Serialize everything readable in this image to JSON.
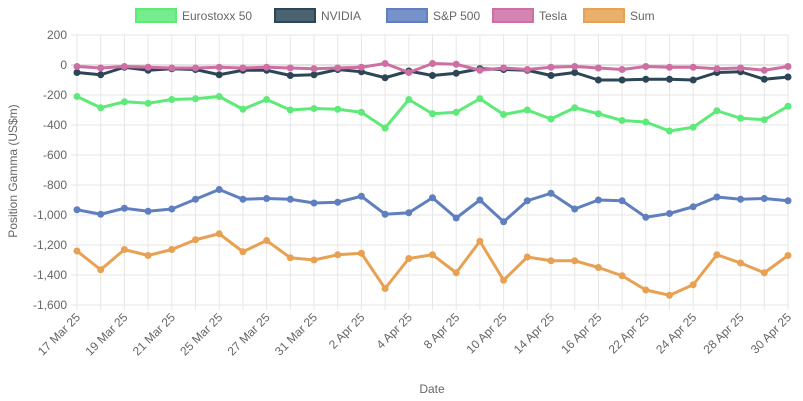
{
  "chart_data": {
    "type": "line",
    "xlabel": "Date",
    "ylabel": "Position Gamma (US$m)",
    "ylim": [
      -1600,
      200
    ],
    "yticks": [
      200,
      0,
      -200,
      -400,
      -600,
      -800,
      -1000,
      -1200,
      -1400,
      -1600
    ],
    "ytick_labels": [
      "200",
      "0",
      "-200",
      "-400",
      "-600",
      "-800",
      "-1,000",
      "-1,200",
      "-1,400",
      "-1,600"
    ],
    "grid": true,
    "legend_position": "top",
    "x": [
      "17 Mar 25",
      "18 Mar 25",
      "19 Mar 25",
      "20 Mar 25",
      "21 Mar 25",
      "24 Mar 25",
      "25 Mar 25",
      "26 Mar 25",
      "27 Mar 25",
      "28 Mar 25",
      "31 Mar 25",
      "1 Apr 25",
      "2 Apr 25",
      "3 Apr 25",
      "4 Apr 25",
      "7 Apr 25",
      "8 Apr 25",
      "9 Apr 25",
      "10 Apr 25",
      "11 Apr 25",
      "14 Apr 25",
      "15 Apr 25",
      "16 Apr 25",
      "17 Apr 25",
      "22 Apr 25",
      "23 Apr 25",
      "24 Apr 25",
      "25 Apr 25",
      "28 Apr 25",
      "29 Apr 25",
      "30 Apr 25"
    ],
    "xtick_labels": [
      "17 Mar 25",
      "19 Mar 25",
      "21 Mar 25",
      "25 Mar 25",
      "27 Mar 25",
      "31 Mar 25",
      "2 Apr 25",
      "4 Apr 25",
      "8 Apr 25",
      "10 Apr 25",
      "14 Apr 25",
      "16 Apr 25",
      "22 Apr 25",
      "24 Apr 25",
      "28 Apr 25",
      "30 Apr 25"
    ],
    "series": [
      {
        "name": "Eurostoxx 50",
        "color": "#5dea78",
        "values": [
          -210,
          -285,
          -245,
          -255,
          -230,
          -225,
          -210,
          -295,
          -230,
          -300,
          -290,
          -295,
          -315,
          -420,
          -230,
          -325,
          -315,
          -225,
          -330,
          -300,
          -360,
          -285,
          -325,
          -370,
          -380,
          -440,
          -415,
          -305,
          -355,
          -365,
          -275
        ]
      },
      {
        "name": "NVIDIA",
        "color": "#2c4657",
        "values": [
          -50,
          -65,
          -15,
          -35,
          -25,
          -30,
          -65,
          -35,
          -35,
          -70,
          -65,
          -30,
          -45,
          -85,
          -40,
          -70,
          -55,
          -25,
          -30,
          -35,
          -70,
          -50,
          -100,
          -100,
          -95,
          -95,
          -100,
          -50,
          -45,
          -95,
          -80
        ]
      },
      {
        "name": "S&P 500",
        "color": "#5f7fbe",
        "values": [
          -965,
          -995,
          -955,
          -975,
          -960,
          -895,
          -830,
          -895,
          -890,
          -895,
          -920,
          -915,
          -875,
          -995,
          -985,
          -885,
          -1020,
          -900,
          -1045,
          -905,
          -855,
          -960,
          -900,
          -905,
          -1015,
          -990,
          -945,
          -880,
          -895,
          -890,
          -905
        ]
      },
      {
        "name": "Tesla",
        "color": "#cd6fa3",
        "values": [
          -10,
          -20,
          -10,
          -15,
          -20,
          -20,
          -15,
          -20,
          -15,
          -20,
          -25,
          -20,
          -15,
          10,
          -50,
          10,
          5,
          -35,
          -20,
          -30,
          -15,
          -10,
          -20,
          -30,
          -10,
          -15,
          -15,
          -25,
          -20,
          -35,
          -10
        ]
      },
      {
        "name": "Sum",
        "color": "#e8a152",
        "values": [
          -1240,
          -1365,
          -1230,
          -1270,
          -1230,
          -1165,
          -1125,
          -1245,
          -1170,
          -1285,
          -1300,
          -1265,
          -1255,
          -1490,
          -1290,
          -1265,
          -1385,
          -1175,
          -1435,
          -1280,
          -1305,
          -1305,
          -1350,
          -1405,
          -1500,
          -1535,
          -1465,
          -1265,
          -1320,
          -1385,
          -1270
        ]
      }
    ]
  }
}
